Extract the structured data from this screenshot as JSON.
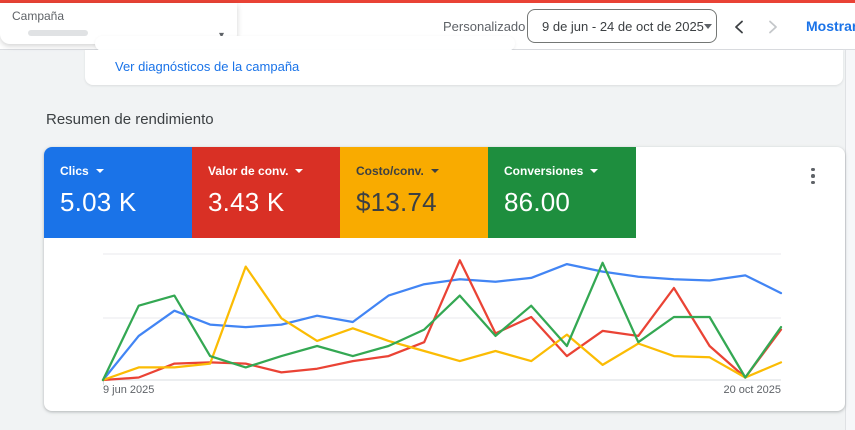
{
  "accent": {
    "top_bar_color": "#e94235"
  },
  "header": {
    "campaign_selector": {
      "label": "Campaña"
    },
    "date_range": {
      "preset_label": "Personalizado",
      "value": "9 de jun - 24 de oct de 2025"
    },
    "show_link_label": "Mostrar le"
  },
  "diagnostics_card": {
    "link_label": "Ver diagnósticos de la campaña"
  },
  "section_title": "Resumen de rendimiento",
  "metric_cards": [
    {
      "label": "Clics",
      "value": "5.03 K",
      "color": "#1a73e8",
      "text_color": "#ffffff"
    },
    {
      "label": "Valor de conv.",
      "value": "3.43 K",
      "color": "#d93025",
      "text_color": "#ffffff"
    },
    {
      "label": "Costo/conv.",
      "value": "$13.74",
      "color": "#f9ab00",
      "text_color": "#3c4043"
    },
    {
      "label": "Conversiones",
      "value": "86.00",
      "color": "#1e8e3e",
      "text_color": "#ffffff"
    }
  ],
  "chart_data": {
    "type": "line",
    "title": "Resumen de rendimiento",
    "x_axis": {
      "ticks": [
        "9 jun 2025",
        "20 oct 2025"
      ],
      "points": 20,
      "interval": "weekly"
    },
    "y_axis": {
      "labels_shown": false,
      "note": "each series independently normalized, values are percent of plot height"
    },
    "grid": "horizontal",
    "legend_position": "none (colors match metric cards above)",
    "series": [
      {
        "name": "Clics",
        "color": "#4285f4",
        "values_pct": [
          0,
          35,
          55,
          44,
          42,
          44,
          51,
          46,
          67,
          76,
          80,
          78,
          81,
          92,
          86,
          82,
          80,
          79,
          83,
          69
        ]
      },
      {
        "name": "Valor de conv.",
        "color": "#ea4335",
        "values_pct": [
          0,
          2,
          13,
          14,
          13,
          6,
          9,
          15,
          19,
          30,
          95,
          37,
          50,
          19,
          39,
          35,
          73,
          27,
          2,
          40
        ]
      },
      {
        "name": "Costo/conv.",
        "color": "#fbbc04",
        "values_pct": [
          0,
          10,
          10,
          13,
          90,
          49,
          31,
          41,
          31,
          23,
          15,
          23,
          15,
          36,
          12,
          29,
          19,
          18,
          2,
          14
        ]
      },
      {
        "name": "Conversiones",
        "color": "#34a853",
        "values_pct": [
          0,
          59,
          67,
          19,
          10,
          19,
          27,
          19,
          27,
          40,
          67,
          35,
          59,
          27,
          93,
          30,
          50,
          50,
          2,
          42
        ]
      }
    ]
  },
  "icons": {
    "more_options": "kebab-menu",
    "prev": "chevron-left",
    "next": "chevron-right",
    "dropdown": "caret-down"
  }
}
